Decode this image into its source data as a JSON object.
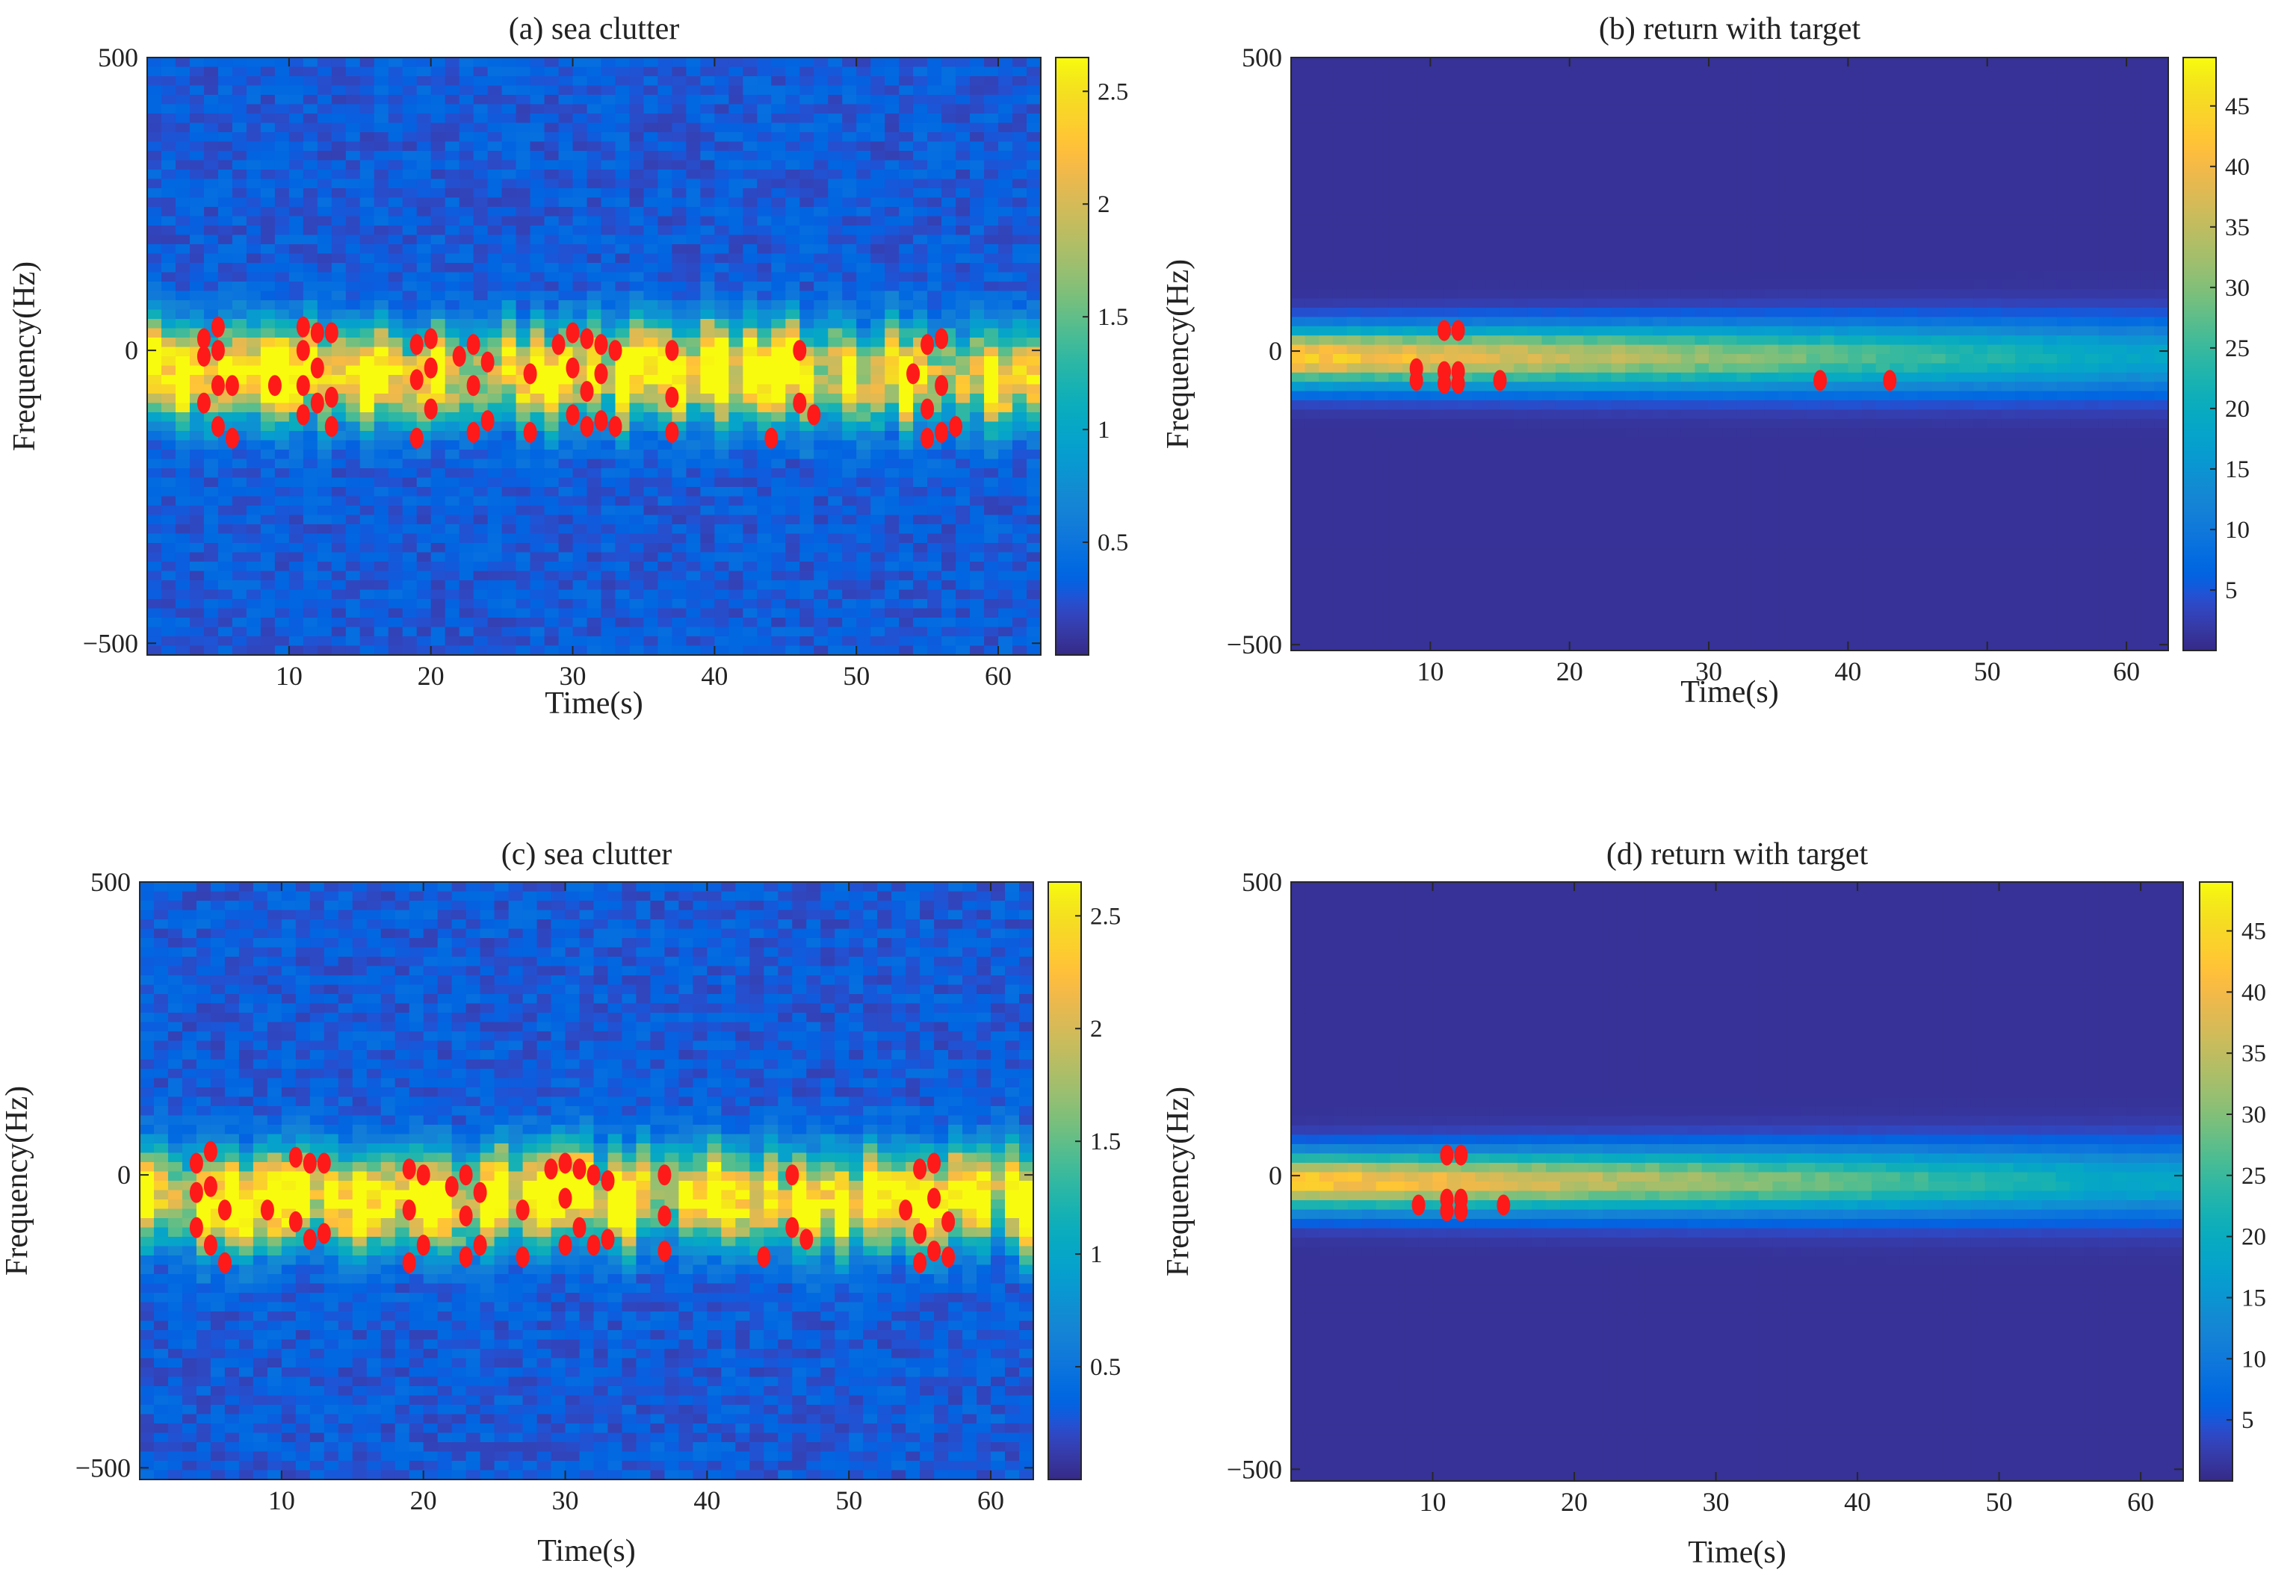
{
  "figure": {
    "panels_order": [
      "a",
      "b",
      "c",
      "d"
    ]
  },
  "chart_data": [
    {
      "id": "a",
      "type": "heatmap",
      "title": "(a) sea clutter",
      "xlabel": "Time(s)",
      "ylabel": "Frequency(Hz)",
      "xlim": [
        0,
        63
      ],
      "ylim": [
        -520,
        500
      ],
      "xticks": [
        10,
        20,
        30,
        40,
        50,
        60
      ],
      "yticks": [
        -500,
        0,
        500
      ],
      "colorbar": {
        "range": [
          0,
          2.65
        ],
        "ticks": [
          0.5,
          1,
          1.5,
          2,
          2.5
        ]
      },
      "spectrum": {
        "kind": "clutter",
        "peak": 2.6,
        "center_hz": -40,
        "width_hz": 75,
        "background": 0.3
      },
      "markers": [
        {
          "t": 4,
          "f": 20
        },
        {
          "t": 4,
          "f": -10
        },
        {
          "t": 4,
          "f": -90
        },
        {
          "t": 5,
          "f": 40
        },
        {
          "t": 5,
          "f": 0
        },
        {
          "t": 5,
          "f": -60
        },
        {
          "t": 5,
          "f": -130
        },
        {
          "t": 6,
          "f": -60
        },
        {
          "t": 6,
          "f": -150
        },
        {
          "t": 9,
          "f": -60
        },
        {
          "t": 11,
          "f": 40
        },
        {
          "t": 11,
          "f": 0
        },
        {
          "t": 11,
          "f": -60
        },
        {
          "t": 11,
          "f": -110
        },
        {
          "t": 12,
          "f": 30
        },
        {
          "t": 12,
          "f": -30
        },
        {
          "t": 12,
          "f": -90
        },
        {
          "t": 13,
          "f": 30
        },
        {
          "t": 13,
          "f": -80
        },
        {
          "t": 13,
          "f": -130
        },
        {
          "t": 19,
          "f": 10
        },
        {
          "t": 19,
          "f": -50
        },
        {
          "t": 19,
          "f": -150
        },
        {
          "t": 20,
          "f": 20
        },
        {
          "t": 20,
          "f": -30
        },
        {
          "t": 20,
          "f": -100
        },
        {
          "t": 22,
          "f": -10
        },
        {
          "t": 23,
          "f": 10
        },
        {
          "t": 23,
          "f": -60
        },
        {
          "t": 23,
          "f": -140
        },
        {
          "t": 24,
          "f": -20
        },
        {
          "t": 24,
          "f": -120
        },
        {
          "t": 27,
          "f": -40
        },
        {
          "t": 27,
          "f": -140
        },
        {
          "t": 29,
          "f": 10
        },
        {
          "t": 30,
          "f": 30
        },
        {
          "t": 30,
          "f": -30
        },
        {
          "t": 30,
          "f": -110
        },
        {
          "t": 31,
          "f": 20
        },
        {
          "t": 31,
          "f": -70
        },
        {
          "t": 31,
          "f": -130
        },
        {
          "t": 32,
          "f": 10
        },
        {
          "t": 32,
          "f": -40
        },
        {
          "t": 32,
          "f": -120
        },
        {
          "t": 33,
          "f": 0
        },
        {
          "t": 33,
          "f": -130
        },
        {
          "t": 37,
          "f": 0
        },
        {
          "t": 37,
          "f": -80
        },
        {
          "t": 37,
          "f": -140
        },
        {
          "t": 44,
          "f": -150
        },
        {
          "t": 46,
          "f": 0
        },
        {
          "t": 46,
          "f": -90
        },
        {
          "t": 47,
          "f": -110
        },
        {
          "t": 54,
          "f": -40
        },
        {
          "t": 55,
          "f": 10
        },
        {
          "t": 55,
          "f": -100
        },
        {
          "t": 55,
          "f": -150
        },
        {
          "t": 56,
          "f": 20
        },
        {
          "t": 56,
          "f": -60
        },
        {
          "t": 56,
          "f": -140
        },
        {
          "t": 57,
          "f": -130
        }
      ]
    },
    {
      "id": "b",
      "type": "heatmap",
      "title": "(b) return with target",
      "xlabel": "Time(s)",
      "ylabel": "Frequency(Hz)",
      "xlim": [
        0,
        63
      ],
      "ylim": [
        -510,
        500
      ],
      "xticks": [
        10,
        20,
        30,
        40,
        50,
        60
      ],
      "yticks": [
        -500,
        0,
        500
      ],
      "colorbar": {
        "range": [
          0,
          49
        ],
        "ticks": [
          5,
          10,
          15,
          20,
          25,
          30,
          35,
          40,
          45
        ]
      },
      "spectrum": {
        "kind": "target",
        "peak": 44,
        "end_value": 18,
        "center_hz": -10,
        "width_hz": 48,
        "background": 1
      },
      "markers": [
        {
          "t": 9,
          "f": -30
        },
        {
          "t": 9,
          "f": -50
        },
        {
          "t": 11,
          "f": 35
        },
        {
          "t": 11,
          "f": -35
        },
        {
          "t": 11,
          "f": -55
        },
        {
          "t": 12,
          "f": 35
        },
        {
          "t": 12,
          "f": -35
        },
        {
          "t": 12,
          "f": -55
        },
        {
          "t": 15,
          "f": -50
        },
        {
          "t": 38,
          "f": -50
        },
        {
          "t": 43,
          "f": -50
        }
      ]
    },
    {
      "id": "c",
      "type": "heatmap",
      "title": "(c) sea clutter",
      "xlabel": "Time(s)",
      "ylabel": "Frequency(Hz)",
      "xlim": [
        0,
        63
      ],
      "ylim": [
        -520,
        500
      ],
      "xticks": [
        10,
        20,
        30,
        40,
        50,
        60
      ],
      "yticks": [
        -500,
        0,
        500
      ],
      "colorbar": {
        "range": [
          0,
          2.65
        ],
        "ticks": [
          0.5,
          1,
          1.5,
          2,
          2.5
        ]
      },
      "spectrum": {
        "kind": "clutter",
        "peak": 2.6,
        "center_hz": -40,
        "width_hz": 75,
        "background": 0.3
      },
      "markers": [
        {
          "t": 4,
          "f": 20
        },
        {
          "t": 4,
          "f": -30
        },
        {
          "t": 4,
          "f": -90
        },
        {
          "t": 5,
          "f": 40
        },
        {
          "t": 5,
          "f": -20
        },
        {
          "t": 5,
          "f": -120
        },
        {
          "t": 6,
          "f": -60
        },
        {
          "t": 6,
          "f": -150
        },
        {
          "t": 9,
          "f": -60
        },
        {
          "t": 11,
          "f": 30
        },
        {
          "t": 11,
          "f": -80
        },
        {
          "t": 12,
          "f": 20
        },
        {
          "t": 12,
          "f": -110
        },
        {
          "t": 13,
          "f": 20
        },
        {
          "t": 13,
          "f": -100
        },
        {
          "t": 19,
          "f": 10
        },
        {
          "t": 19,
          "f": -60
        },
        {
          "t": 19,
          "f": -150
        },
        {
          "t": 20,
          "f": 0
        },
        {
          "t": 20,
          "f": -120
        },
        {
          "t": 22,
          "f": -20
        },
        {
          "t": 23,
          "f": 0
        },
        {
          "t": 23,
          "f": -70
        },
        {
          "t": 23,
          "f": -140
        },
        {
          "t": 24,
          "f": -30
        },
        {
          "t": 24,
          "f": -120
        },
        {
          "t": 27,
          "f": -60
        },
        {
          "t": 27,
          "f": -140
        },
        {
          "t": 29,
          "f": 10
        },
        {
          "t": 30,
          "f": 20
        },
        {
          "t": 30,
          "f": -40
        },
        {
          "t": 30,
          "f": -120
        },
        {
          "t": 31,
          "f": 10
        },
        {
          "t": 31,
          "f": -90
        },
        {
          "t": 32,
          "f": 0
        },
        {
          "t": 32,
          "f": -120
        },
        {
          "t": 33,
          "f": -10
        },
        {
          "t": 33,
          "f": -110
        },
        {
          "t": 37,
          "f": 0
        },
        {
          "t": 37,
          "f": -70
        },
        {
          "t": 37,
          "f": -130
        },
        {
          "t": 44,
          "f": -140
        },
        {
          "t": 46,
          "f": 0
        },
        {
          "t": 46,
          "f": -90
        },
        {
          "t": 47,
          "f": -110
        },
        {
          "t": 54,
          "f": -60
        },
        {
          "t": 55,
          "f": 10
        },
        {
          "t": 55,
          "f": -100
        },
        {
          "t": 55,
          "f": -150
        },
        {
          "t": 56,
          "f": 20
        },
        {
          "t": 56,
          "f": -40
        },
        {
          "t": 56,
          "f": -130
        },
        {
          "t": 57,
          "f": -80
        },
        {
          "t": 57,
          "f": -140
        }
      ]
    },
    {
      "id": "d",
      "type": "heatmap",
      "title": "(d) return with target",
      "xlabel": "Time(s)",
      "ylabel": "Frequency(Hz)",
      "xlim": [
        0,
        63
      ],
      "ylim": [
        -520,
        500
      ],
      "xticks": [
        10,
        20,
        30,
        40,
        50,
        60
      ],
      "yticks": [
        -500,
        0,
        500
      ],
      "colorbar": {
        "range": [
          0,
          49
        ],
        "ticks": [
          5,
          10,
          15,
          20,
          25,
          30,
          35,
          40,
          45
        ]
      },
      "spectrum": {
        "kind": "target",
        "peak": 44,
        "end_value": 18,
        "center_hz": -10,
        "width_hz": 48,
        "background": 1
      },
      "markers": [
        {
          "t": 9,
          "f": -50
        },
        {
          "t": 11,
          "f": 35
        },
        {
          "t": 11,
          "f": -40
        },
        {
          "t": 11,
          "f": -60
        },
        {
          "t": 12,
          "f": 35
        },
        {
          "t": 12,
          "f": -40
        },
        {
          "t": 12,
          "f": -60
        },
        {
          "t": 15,
          "f": -50
        }
      ]
    }
  ]
}
